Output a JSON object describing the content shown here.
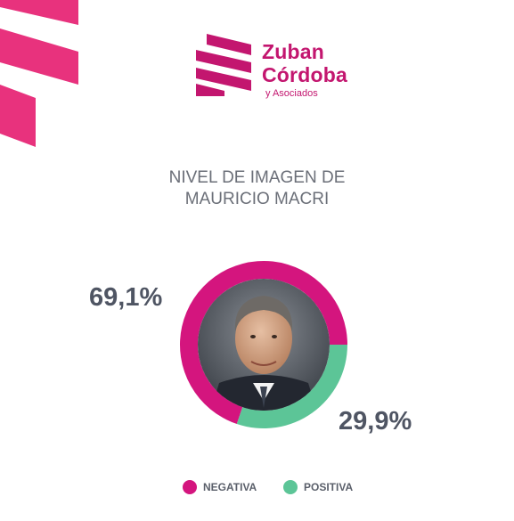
{
  "brand": {
    "line1": "Zuban",
    "line2": "Córdoba",
    "sub": "y Asociados",
    "color": "#c3166f"
  },
  "chart_data": {
    "type": "pie",
    "title_lines": [
      "NIVEL DE IMAGEN DE",
      "MAURICIO MACRI"
    ],
    "slices": [
      {
        "name": "NEGATIVA",
        "value": 69.1,
        "label": "69,1%",
        "color": "#d4157e"
      },
      {
        "name": "POSITIVA",
        "value": 29.9,
        "label": "29,9%",
        "color": "#5cc597"
      }
    ],
    "legend_position": "bottom"
  },
  "photo": {
    "icon": "portrait-photo"
  }
}
